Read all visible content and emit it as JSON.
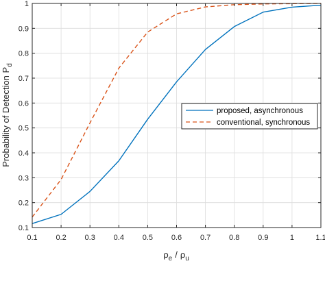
{
  "chart_data": {
    "type": "line",
    "xlim": [
      0.1,
      1.1
    ],
    "ylim": [
      0.1,
      1.0
    ],
    "x_ticks": [
      "0.1",
      "0.2",
      "0.3",
      "0.4",
      "0.5",
      "0.6",
      "0.7",
      "0.8",
      "0.9",
      "1",
      "1.1"
    ],
    "y_ticks": [
      "0.1",
      "0.2",
      "0.3",
      "0.4",
      "0.5",
      "0.6",
      "0.7",
      "0.8",
      "0.9",
      "1"
    ],
    "grid": true,
    "legend_position": "center-right",
    "xlabel": {
      "rho1": "ρ",
      "sub1": "e",
      "slash": "/",
      "rho2": "ρ",
      "sub2": "u"
    },
    "ylabel": {
      "main": "Probability of Detection P",
      "sub": "d"
    },
    "x": [
      0.1,
      0.2,
      0.3,
      0.4,
      0.5,
      0.6,
      0.7,
      0.8,
      0.9,
      1.0,
      1.1
    ],
    "series": [
      {
        "name": "proposed, asynchronous",
        "color": "#0072BD",
        "dash": "solid",
        "values": [
          0.116,
          0.153,
          0.245,
          0.368,
          0.535,
          0.685,
          0.815,
          0.907,
          0.965,
          0.985,
          0.993
        ]
      },
      {
        "name": "conventional, synchronous",
        "color": "#D95319",
        "dash": "dashed",
        "values": [
          0.142,
          0.293,
          0.52,
          0.74,
          0.885,
          0.958,
          0.986,
          0.995,
          0.998,
          0.999,
          1.0
        ]
      }
    ]
  }
}
